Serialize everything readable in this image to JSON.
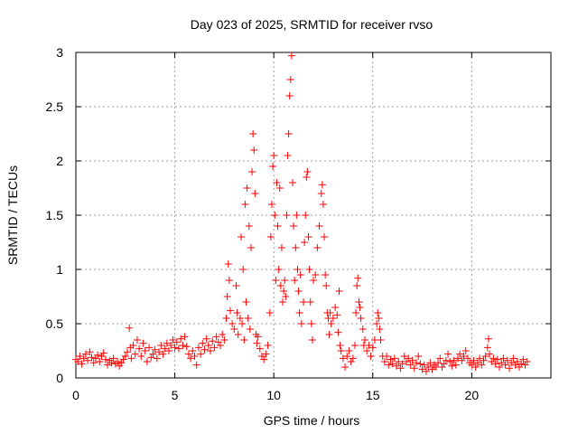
{
  "chart_data": {
    "type": "scatter",
    "title": "Day 023 of 2025, SRMTID for receiver rvso",
    "xlabel": "GPS time / hours",
    "ylabel": "SRMTID / TECUs",
    "xlim": [
      0,
      24
    ],
    "ylim": [
      0,
      3
    ],
    "xticks": [
      0,
      5,
      10,
      15,
      20
    ],
    "xtick_labels": [
      "0",
      "5",
      "10",
      "15",
      "20"
    ],
    "yticks": [
      0,
      0.5,
      1,
      1.5,
      2,
      2.5,
      3
    ],
    "ytick_labels": [
      "0",
      "0.5",
      "1",
      "1.5",
      "2",
      "2.5",
      "3"
    ],
    "grid": true,
    "marker": "+",
    "series": [
      {
        "name": "SRMTID",
        "color": "#ff0000",
        "points": [
          [
            0.0,
            0.17
          ],
          [
            0.1,
            0.15
          ],
          [
            0.2,
            0.2
          ],
          [
            0.3,
            0.13
          ],
          [
            0.4,
            0.18
          ],
          [
            0.5,
            0.22
          ],
          [
            0.6,
            0.16
          ],
          [
            0.7,
            0.24
          ],
          [
            0.8,
            0.19
          ],
          [
            0.9,
            0.14
          ],
          [
            1.0,
            0.18
          ],
          [
            1.1,
            0.21
          ],
          [
            1.2,
            0.15
          ],
          [
            1.3,
            0.2
          ],
          [
            1.4,
            0.23
          ],
          [
            1.5,
            0.17
          ],
          [
            1.6,
            0.12
          ],
          [
            1.7,
            0.16
          ],
          [
            1.8,
            0.14
          ],
          [
            1.9,
            0.18
          ],
          [
            2.0,
            0.13
          ],
          [
            2.1,
            0.15
          ],
          [
            2.2,
            0.11
          ],
          [
            2.3,
            0.14
          ],
          [
            2.4,
            0.17
          ],
          [
            2.5,
            0.2
          ],
          [
            2.6,
            0.24
          ],
          [
            2.7,
            0.46
          ],
          [
            2.75,
            0.28
          ],
          [
            2.8,
            0.18
          ],
          [
            2.9,
            0.3
          ],
          [
            3.0,
            0.22
          ],
          [
            3.1,
            0.35
          ],
          [
            3.2,
            0.27
          ],
          [
            3.3,
            0.2
          ],
          [
            3.4,
            0.32
          ],
          [
            3.5,
            0.25
          ],
          [
            3.6,
            0.15
          ],
          [
            3.7,
            0.28
          ],
          [
            3.8,
            0.19
          ],
          [
            3.9,
            0.22
          ],
          [
            4.0,
            0.26
          ],
          [
            4.1,
            0.18
          ],
          [
            4.2,
            0.24
          ],
          [
            4.3,
            0.3
          ],
          [
            4.4,
            0.22
          ],
          [
            4.5,
            0.27
          ],
          [
            4.6,
            0.32
          ],
          [
            4.7,
            0.25
          ],
          [
            4.8,
            0.3
          ],
          [
            4.9,
            0.35
          ],
          [
            5.0,
            0.28
          ],
          [
            5.1,
            0.33
          ],
          [
            5.2,
            0.27
          ],
          [
            5.3,
            0.36
          ],
          [
            5.4,
            0.3
          ],
          [
            5.5,
            0.38
          ],
          [
            5.6,
            0.29
          ],
          [
            5.7,
            0.22
          ],
          [
            5.8,
            0.18
          ],
          [
            5.9,
            0.25
          ],
          [
            6.0,
            0.2
          ],
          [
            6.1,
            0.12
          ],
          [
            6.2,
            0.28
          ],
          [
            6.3,
            0.22
          ],
          [
            6.4,
            0.32
          ],
          [
            6.5,
            0.26
          ],
          [
            6.6,
            0.36
          ],
          [
            6.7,
            0.3
          ],
          [
            6.8,
            0.25
          ],
          [
            6.9,
            0.34
          ],
          [
            7.0,
            0.28
          ],
          [
            7.1,
            0.38
          ],
          [
            7.2,
            0.33
          ],
          [
            7.3,
            0.3
          ],
          [
            7.4,
            0.4
          ],
          [
            7.5,
            0.35
          ],
          [
            7.6,
            0.55
          ],
          [
            7.65,
            0.75
          ],
          [
            7.7,
            1.05
          ],
          [
            7.75,
            0.9
          ],
          [
            7.8,
            0.62
          ],
          [
            7.9,
            0.5
          ],
          [
            8.0,
            0.45
          ],
          [
            8.1,
            0.85
          ],
          [
            8.15,
            0.6
          ],
          [
            8.2,
            0.4
          ],
          [
            8.3,
            0.55
          ],
          [
            8.35,
            1.3
          ],
          [
            8.4,
            0.5
          ],
          [
            8.45,
            1.0
          ],
          [
            8.5,
            0.35
          ],
          [
            8.55,
            1.6
          ],
          [
            8.6,
            0.7
          ],
          [
            8.65,
            1.75
          ],
          [
            8.7,
            0.55
          ],
          [
            8.75,
            1.4
          ],
          [
            8.8,
            0.45
          ],
          [
            8.85,
            1.2
          ],
          [
            8.9,
            1.9
          ],
          [
            8.95,
            2.25
          ],
          [
            9.0,
            2.1
          ],
          [
            9.05,
            1.7
          ],
          [
            9.1,
            0.4
          ],
          [
            9.15,
            0.32
          ],
          [
            9.2,
            0.38
          ],
          [
            9.3,
            0.27
          ],
          [
            9.4,
            0.2
          ],
          [
            9.5,
            0.17
          ],
          [
            9.6,
            0.22
          ],
          [
            9.7,
            0.3
          ],
          [
            9.8,
            0.6
          ],
          [
            9.85,
            1.3
          ],
          [
            9.9,
            1.6
          ],
          [
            9.95,
            1.95
          ],
          [
            10.0,
            2.05
          ],
          [
            10.05,
            1.5
          ],
          [
            10.1,
            0.9
          ],
          [
            10.15,
            1.8
          ],
          [
            10.2,
            1.4
          ],
          [
            10.25,
            1.0
          ],
          [
            10.3,
            1.75
          ],
          [
            10.35,
            0.85
          ],
          [
            10.4,
            1.2
          ],
          [
            10.45,
            0.7
          ],
          [
            10.5,
            0.8
          ],
          [
            10.55,
            0.9
          ],
          [
            10.6,
            0.75
          ],
          [
            10.65,
            1.5
          ],
          [
            10.7,
            2.05
          ],
          [
            10.75,
            2.25
          ],
          [
            10.8,
            2.6
          ],
          [
            10.85,
            2.75
          ],
          [
            10.9,
            2.97
          ],
          [
            10.95,
            1.8
          ],
          [
            11.0,
            1.4
          ],
          [
            11.05,
            0.9
          ],
          [
            11.1,
            1.2
          ],
          [
            11.15,
            1.5
          ],
          [
            11.2,
            1.0
          ],
          [
            11.25,
            0.8
          ],
          [
            11.3,
            0.6
          ],
          [
            11.35,
            0.95
          ],
          [
            11.4,
            0.5
          ],
          [
            11.5,
            0.7
          ],
          [
            11.55,
            1.25
          ],
          [
            11.6,
            1.5
          ],
          [
            11.65,
            1.85
          ],
          [
            11.7,
            1.9
          ],
          [
            11.75,
            1.3
          ],
          [
            11.8,
            1.0
          ],
          [
            11.85,
            0.7
          ],
          [
            11.9,
            0.5
          ],
          [
            11.95,
            0.35
          ],
          [
            12.0,
            0.9
          ],
          [
            12.1,
            0.95
          ],
          [
            12.2,
            1.2
          ],
          [
            12.3,
            1.4
          ],
          [
            12.4,
            1.7
          ],
          [
            12.45,
            1.78
          ],
          [
            12.5,
            1.6
          ],
          [
            12.55,
            1.3
          ],
          [
            12.6,
            0.95
          ],
          [
            12.65,
            0.85
          ],
          [
            12.7,
            0.6
          ],
          [
            12.75,
            0.55
          ],
          [
            12.8,
            0.4
          ],
          [
            12.85,
            0.6
          ],
          [
            12.9,
            0.5
          ],
          [
            13.0,
            0.55
          ],
          [
            13.1,
            0.65
          ],
          [
            13.2,
            0.58
          ],
          [
            13.25,
            0.42
          ],
          [
            13.3,
            0.8
          ],
          [
            13.35,
            0.3
          ],
          [
            13.4,
            0.25
          ],
          [
            13.5,
            0.18
          ],
          [
            13.6,
            0.1
          ],
          [
            13.7,
            0.2
          ],
          [
            13.8,
            0.25
          ],
          [
            13.9,
            0.15
          ],
          [
            14.0,
            0.18
          ],
          [
            14.1,
            0.3
          ],
          [
            14.15,
            0.6
          ],
          [
            14.2,
            0.85
          ],
          [
            14.25,
            0.92
          ],
          [
            14.3,
            0.7
          ],
          [
            14.35,
            0.65
          ],
          [
            14.4,
            0.55
          ],
          [
            14.5,
            0.45
          ],
          [
            14.55,
            0.3
          ],
          [
            14.6,
            0.35
          ],
          [
            14.7,
            0.25
          ],
          [
            14.8,
            0.3
          ],
          [
            14.9,
            0.2
          ],
          [
            15.0,
            0.28
          ],
          [
            15.1,
            0.35
          ],
          [
            15.2,
            0.5
          ],
          [
            15.25,
            0.6
          ],
          [
            15.3,
            0.55
          ],
          [
            15.35,
            0.45
          ],
          [
            15.4,
            0.35
          ],
          [
            15.5,
            0.2
          ],
          [
            15.6,
            0.15
          ],
          [
            15.7,
            0.2
          ],
          [
            15.8,
            0.12
          ],
          [
            15.9,
            0.17
          ],
          [
            16.0,
            0.13
          ],
          [
            16.1,
            0.18
          ],
          [
            16.2,
            0.11
          ],
          [
            16.3,
            0.15
          ],
          [
            16.4,
            0.09
          ],
          [
            16.5,
            0.13
          ],
          [
            16.6,
            0.2
          ],
          [
            16.7,
            0.15
          ],
          [
            16.8,
            0.18
          ],
          [
            16.9,
            0.12
          ],
          [
            17.0,
            0.16
          ],
          [
            17.1,
            0.09
          ],
          [
            17.2,
            0.14
          ],
          [
            17.3,
            0.2
          ],
          [
            17.4,
            0.13
          ],
          [
            17.5,
            0.08
          ],
          [
            17.6,
            0.12
          ],
          [
            17.7,
            0.06
          ],
          [
            17.8,
            0.1
          ],
          [
            17.9,
            0.14
          ],
          [
            18.0,
            0.08
          ],
          [
            18.1,
            0.12
          ],
          [
            18.2,
            0.1
          ],
          [
            18.3,
            0.14
          ],
          [
            18.4,
            0.18
          ],
          [
            18.5,
            0.1
          ],
          [
            18.6,
            0.13
          ],
          [
            18.7,
            0.16
          ],
          [
            18.8,
            0.22
          ],
          [
            18.9,
            0.15
          ],
          [
            19.0,
            0.11
          ],
          [
            19.1,
            0.16
          ],
          [
            19.2,
            0.12
          ],
          [
            19.3,
            0.18
          ],
          [
            19.4,
            0.22
          ],
          [
            19.5,
            0.16
          ],
          [
            19.6,
            0.2
          ],
          [
            19.7,
            0.25
          ],
          [
            19.8,
            0.18
          ],
          [
            19.9,
            0.14
          ],
          [
            20.0,
            0.12
          ],
          [
            20.1,
            0.16
          ],
          [
            20.2,
            0.1
          ],
          [
            20.3,
            0.14
          ],
          [
            20.4,
            0.18
          ],
          [
            20.5,
            0.12
          ],
          [
            20.6,
            0.16
          ],
          [
            20.7,
            0.2
          ],
          [
            20.8,
            0.28
          ],
          [
            20.85,
            0.36
          ],
          [
            20.9,
            0.22
          ],
          [
            21.0,
            0.15
          ],
          [
            21.1,
            0.18
          ],
          [
            21.2,
            0.13
          ],
          [
            21.3,
            0.17
          ],
          [
            21.4,
            0.1
          ],
          [
            21.5,
            0.14
          ],
          [
            21.6,
            0.18
          ],
          [
            21.7,
            0.12
          ],
          [
            21.8,
            0.16
          ],
          [
            21.9,
            0.09
          ],
          [
            22.0,
            0.14
          ],
          [
            22.1,
            0.18
          ],
          [
            22.2,
            0.12
          ],
          [
            22.3,
            0.15
          ],
          [
            22.4,
            0.1
          ],
          [
            22.5,
            0.13
          ],
          [
            22.6,
            0.17
          ],
          [
            22.7,
            0.12
          ],
          [
            22.8,
            0.15
          ]
        ]
      }
    ]
  }
}
